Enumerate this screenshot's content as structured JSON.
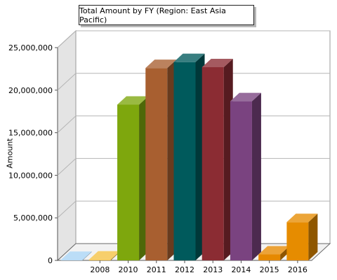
{
  "chart_data": {
    "type": "bar",
    "title": "Total Amount by FY (Region: East Asia Pacific)",
    "ylabel": "Amount",
    "xlabel": "",
    "ylim": [
      0,
      25000000
    ],
    "yticks": [
      0,
      5000000,
      10000000,
      15000000,
      20000000,
      25000000
    ],
    "ytick_labels": [
      "0",
      "5,000,000",
      "10,000,000",
      "15,000,000",
      "20,000,000",
      "25,000,000"
    ],
    "categories": [
      "",
      "2008",
      "2010",
      "2011",
      "2012",
      "2013",
      "2014",
      "2015",
      "2016"
    ],
    "values": [
      60000,
      100000,
      18300000,
      22600000,
      23300000,
      22700000,
      18700000,
      700000,
      4500000
    ],
    "colors": [
      "#a8d4f5",
      "#f5c242",
      "#7ea70d",
      "#a85f30",
      "#005a5c",
      "#8b2c33",
      "#7a4380",
      "#e68900",
      "#e68c00"
    ],
    "grid": true,
    "style": "3d"
  }
}
